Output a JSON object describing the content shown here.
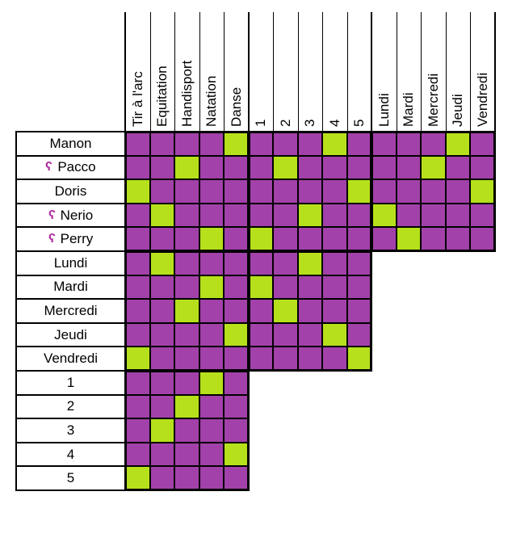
{
  "colors": {
    "on": "#b7e01c",
    "off": "#a241a9",
    "hook": "#b030a0"
  },
  "column_groups": [
    {
      "name_key": "sports",
      "labels": [
        "Tir à l'arc",
        "Equitation",
        "Handisport",
        "Natation",
        "Danse"
      ]
    },
    {
      "name_key": "numbers",
      "labels": [
        "1",
        "2",
        "3",
        "4",
        "5"
      ]
    },
    {
      "name_key": "days",
      "labels": [
        "Lundi",
        "Mardi",
        "Mercredi",
        "Jeudi",
        "Vendredi"
      ]
    }
  ],
  "row_groups": [
    {
      "name_key": "names",
      "labels": [
        "Manon",
        "Pacco",
        "Doris",
        "Nerio",
        "Perry"
      ],
      "hooks": [
        false,
        true,
        false,
        true,
        true
      ]
    },
    {
      "name_key": "days",
      "labels": [
        "Lundi",
        "Mardi",
        "Mercredi",
        "Jeudi",
        "Vendredi"
      ],
      "hooks": [
        false,
        false,
        false,
        false,
        false
      ]
    },
    {
      "name_key": "numbers",
      "labels": [
        "1",
        "2",
        "3",
        "4",
        "5"
      ],
      "hooks": [
        false,
        false,
        false,
        false,
        false
      ]
    }
  ],
  "green_cells": {
    "names-sports": [
      [
        0,
        4
      ],
      [
        1,
        2
      ],
      [
        2,
        0
      ],
      [
        3,
        1
      ],
      [
        4,
        3
      ]
    ],
    "names-numbers": [
      [
        0,
        3
      ],
      [
        1,
        1
      ],
      [
        2,
        4
      ],
      [
        3,
        2
      ],
      [
        4,
        0
      ]
    ],
    "names-days": [
      [
        0,
        3
      ],
      [
        1,
        2
      ],
      [
        2,
        4
      ],
      [
        3,
        0
      ],
      [
        4,
        1
      ]
    ],
    "days-sports": [
      [
        0,
        1
      ],
      [
        1,
        3
      ],
      [
        2,
        2
      ],
      [
        3,
        4
      ],
      [
        4,
        0
      ]
    ],
    "days-numbers": [
      [
        0,
        2
      ],
      [
        1,
        0
      ],
      [
        2,
        1
      ],
      [
        3,
        3
      ],
      [
        4,
        4
      ]
    ],
    "numbers-sports": [
      [
        0,
        3
      ],
      [
        1,
        2
      ],
      [
        2,
        1
      ],
      [
        3,
        4
      ],
      [
        4,
        0
      ]
    ]
  }
}
